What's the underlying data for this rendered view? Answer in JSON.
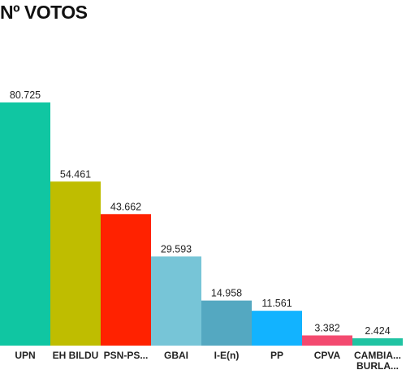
{
  "chart_data": {
    "type": "bar",
    "title": "Nº VOTOS",
    "xlabel": "",
    "ylabel": "",
    "ylim": [
      0,
      80725
    ],
    "grid": false,
    "legend": "none",
    "categories": [
      [
        "UPN"
      ],
      [
        "EH BILDU"
      ],
      [
        "PSN-PS..."
      ],
      [
        "GBAI"
      ],
      [
        "I-E(n)"
      ],
      [
        "PP"
      ],
      [
        "CPVA"
      ],
      [
        "CAMBIA...",
        "BURLA..."
      ]
    ],
    "values": [
      80725,
      54461,
      43662,
      29593,
      14958,
      11561,
      3382,
      2424
    ],
    "value_labels": [
      "80.725",
      "54.461",
      "43.662",
      "29.593",
      "14.958",
      "11.561",
      "3.382",
      "2.424"
    ],
    "colors": [
      "#10c6a2",
      "#bfbd00",
      "#ff2200",
      "#77c5d7",
      "#54a8c1",
      "#12b3ff",
      "#f34a6f",
      "#20c3a2"
    ]
  }
}
